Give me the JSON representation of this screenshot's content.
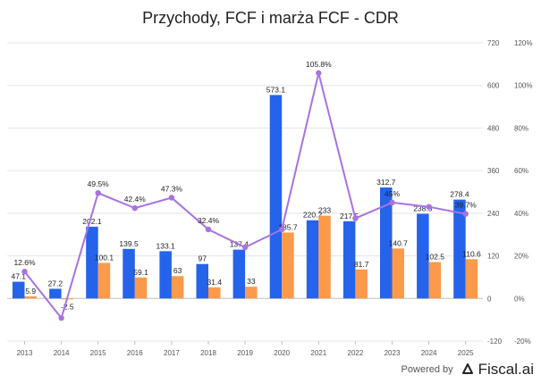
{
  "title": "Przychody, FCF i marża FCF - CDR",
  "footer": {
    "powered_by": "Powered by",
    "brand": "Fiscal.ai"
  },
  "colors": {
    "revenue": "#2563eb",
    "fcf": "#fb9a4b",
    "margin": "#a972e0",
    "grid": "#e5e5e5",
    "zero": "#bfbfbf",
    "axis_text": "#555555"
  },
  "chart_data": {
    "type": "bar",
    "title": "Przychody, FCF i marża FCF - CDR",
    "categories": [
      "2013",
      "2014",
      "2015",
      "2016",
      "2017",
      "2018",
      "2019",
      "2020",
      "2021",
      "2022",
      "2023",
      "2024",
      "2025"
    ],
    "series": [
      {
        "name": "Przychody",
        "type": "bar",
        "axis": "left",
        "values": [
          47.1,
          27.2,
          202.1,
          139.5,
          133.1,
          97,
          137.4,
          573.1,
          220.2,
          217.5,
          312.7,
          238.5,
          278.4
        ],
        "labels": [
          "47.1",
          "27.2",
          "202.1",
          "139.5",
          "133.1",
          "97",
          "137.4",
          "573.1",
          "220.2",
          "217.5",
          "312.7",
          "238.5",
          "278.4"
        ]
      },
      {
        "name": "FCF",
        "type": "bar",
        "axis": "left",
        "values": [
          5.9,
          -2.5,
          100.1,
          59.1,
          63,
          31.4,
          33,
          185.7,
          233,
          81.7,
          140.7,
          102.5,
          110.6
        ],
        "labels": [
          "5.9",
          "-2.5",
          "100.1",
          "59.1",
          "63",
          "31.4",
          "33",
          "185.7",
          "233",
          "81.7",
          "140.7",
          "102.5",
          "110.6"
        ]
      },
      {
        "name": "Marża FCF",
        "type": "line",
        "axis": "right",
        "values": [
          12.6,
          -9.2,
          49.5,
          42.4,
          47.3,
          32.4,
          24.0,
          32.4,
          105.8,
          37.6,
          45.0,
          43.0,
          39.7
        ],
        "labels": [
          "12.6%",
          "",
          "49.5%",
          "42.4%",
          "47.3%",
          "32.4%",
          "",
          "",
          "105.8%",
          "",
          "45%",
          "",
          "39.7%"
        ]
      }
    ],
    "y_left": {
      "min": -120,
      "max": 720,
      "ticks": [
        "-120",
        "0",
        "120",
        "240",
        "360",
        "480",
        "600",
        "720"
      ]
    },
    "y_right": {
      "min": -20,
      "max": 120,
      "ticks": [
        "-20%",
        "0%",
        "20%",
        "40%",
        "60%",
        "80%",
        "100%",
        "120%"
      ]
    },
    "grid": true
  }
}
